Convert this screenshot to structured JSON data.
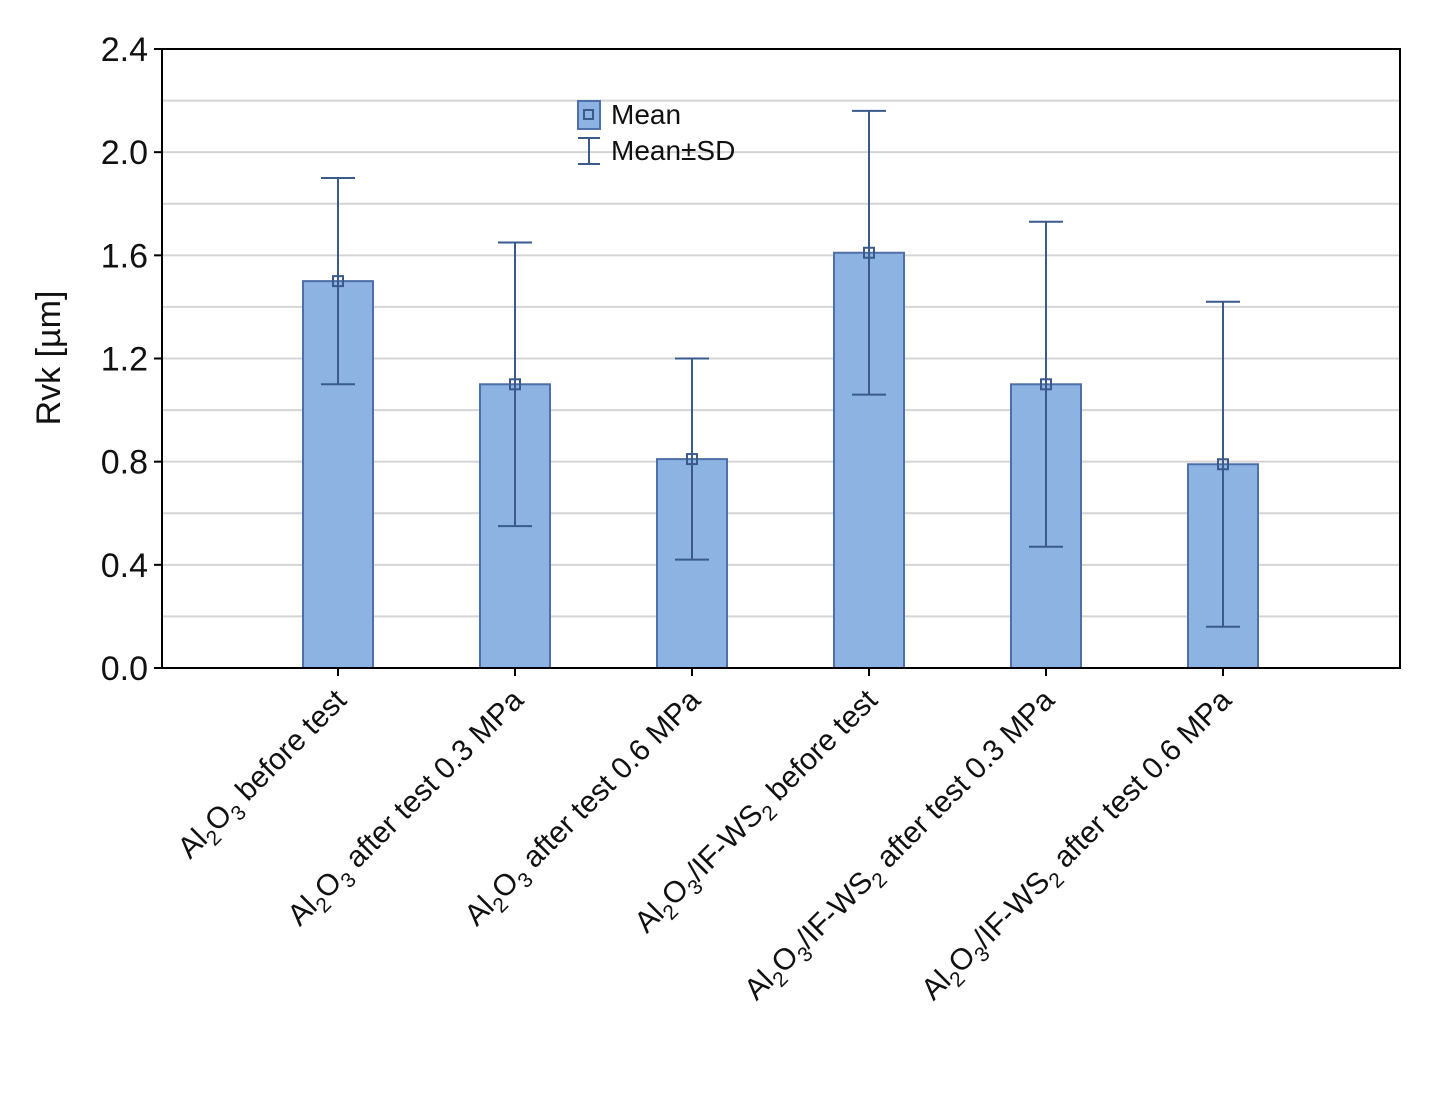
{
  "chart_data": {
    "type": "bar",
    "title": "",
    "xlabel": "",
    "ylabel": "Rvk [µm]",
    "ylim": [
      0,
      2.4
    ],
    "yticks": [
      "0.0",
      "0.4",
      "0.8",
      "1.2",
      "1.6",
      "2.0",
      "2.4"
    ],
    "grid": true,
    "legend": {
      "position": "top-center",
      "entries": [
        {
          "label": "Mean",
          "marker": "bar-with-square"
        },
        {
          "label": "Mean±SD",
          "marker": "error-bar"
        }
      ]
    },
    "categories": [
      "Al2O3 before test",
      "Al2O3 after test 0.3 MPa",
      "Al2O3 after test 0.6 MPa",
      "Al2O3/IF-WS2 before test",
      "Al2O3/IF-WS2 after test 0.3 MPa",
      "Al2O3/IF-WS2 after test 0.6 MPa"
    ],
    "category_parts": [
      [
        [
          "Al",
          ""
        ],
        [
          "2",
          "sub"
        ],
        [
          "O",
          ""
        ],
        [
          "3",
          "sub"
        ],
        [
          " before test",
          ""
        ]
      ],
      [
        [
          "Al",
          ""
        ],
        [
          "2",
          "sub"
        ],
        [
          "O",
          ""
        ],
        [
          "3",
          "sub"
        ],
        [
          " after test 0.3 MPa",
          ""
        ]
      ],
      [
        [
          "Al",
          ""
        ],
        [
          "2",
          "sub"
        ],
        [
          "O",
          ""
        ],
        [
          "3",
          "sub"
        ],
        [
          " after test 0.6 MPa",
          ""
        ]
      ],
      [
        [
          "Al",
          ""
        ],
        [
          "2",
          "sub"
        ],
        [
          "O",
          ""
        ],
        [
          "3",
          "sub"
        ],
        [
          "/IF-WS",
          ""
        ],
        [
          "2",
          "sub"
        ],
        [
          " before test",
          ""
        ]
      ],
      [
        [
          "Al",
          ""
        ],
        [
          "2",
          "sub"
        ],
        [
          "O",
          ""
        ],
        [
          "3",
          "sub"
        ],
        [
          "/IF-WS",
          ""
        ],
        [
          "2",
          "sub"
        ],
        [
          " after test 0.3 MPa",
          ""
        ]
      ],
      [
        [
          "Al",
          ""
        ],
        [
          "2",
          "sub"
        ],
        [
          "O",
          ""
        ],
        [
          "3",
          "sub"
        ],
        [
          "/IF-WS",
          ""
        ],
        [
          "2",
          "sub"
        ],
        [
          " after test 0.6 MPa",
          ""
        ]
      ]
    ],
    "series": [
      {
        "name": "Mean",
        "values": [
          1.5,
          1.1,
          0.81,
          1.61,
          1.1,
          0.79
        ],
        "sd": [
          0.4,
          0.55,
          0.39,
          0.55,
          0.63,
          0.63
        ]
      }
    ],
    "colors": {
      "bar_fill": "#8db3e2",
      "bar_stroke": "#4f6fa8",
      "error_bar": "#3a5a8c",
      "grid": "#d4d4d4",
      "axis": "#000000"
    }
  }
}
